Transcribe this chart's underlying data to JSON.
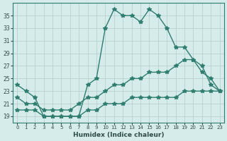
{
  "xlabel": "Humidex (Indice chaleur)",
  "ylabel": "",
  "bg_color": "#d6ecea",
  "line_color": "#2e7d6e",
  "grid_color": "#b0ccc9",
  "xlim": [
    0,
    23
  ],
  "ylim": [
    18,
    36
  ],
  "yticks": [
    19,
    21,
    23,
    25,
    27,
    29,
    31,
    33,
    35
  ],
  "xticks": [
    0,
    1,
    2,
    3,
    4,
    5,
    6,
    7,
    8,
    9,
    10,
    11,
    12,
    13,
    14,
    15,
    16,
    17,
    18,
    19,
    20,
    21,
    22,
    23
  ],
  "line1_x": [
    0,
    1,
    2,
    3,
    4,
    5,
    6,
    7,
    8,
    9,
    10,
    11,
    12,
    13,
    14,
    15,
    16,
    17,
    18,
    19,
    20,
    21,
    22,
    23
  ],
  "line1_y": [
    24,
    23,
    22,
    19,
    19,
    19,
    19,
    19,
    24,
    25,
    33,
    36,
    35,
    35,
    34,
    36,
    35,
    33,
    30,
    30,
    28,
    26,
    25,
    23
  ],
  "line2_x": [
    0,
    1,
    2,
    3,
    4,
    5,
    6,
    7,
    8,
    9,
    10,
    11,
    12,
    13,
    14,
    15,
    16,
    17,
    18,
    19,
    20,
    21,
    22,
    23
  ],
  "line2_y": [
    22,
    21,
    21,
    20,
    20,
    20,
    20,
    21,
    22,
    22,
    23,
    24,
    24,
    25,
    25,
    26,
    26,
    26,
    27,
    28,
    28,
    27,
    24,
    23
  ],
  "line3_x": [
    0,
    1,
    2,
    3,
    4,
    5,
    6,
    7,
    8,
    9,
    10,
    11,
    12,
    13,
    14,
    15,
    16,
    17,
    18,
    19,
    20,
    21,
    22,
    23
  ],
  "line3_y": [
    20,
    20,
    20,
    19,
    19,
    19,
    19,
    19,
    20,
    20,
    21,
    21,
    21,
    22,
    22,
    22,
    22,
    22,
    22,
    23,
    23,
    23,
    23,
    23
  ]
}
